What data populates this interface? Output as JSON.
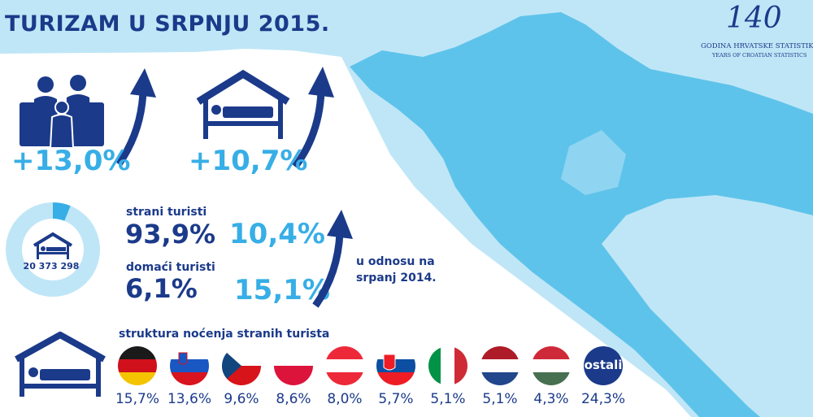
{
  "title": "TURIZAM U SRPNJU 2015.",
  "logo": {
    "number": "140",
    "line1": "GODINA HRVATSKE STATISTIKE",
    "line2": "YEARS OF CROATIAN STATISTICS"
  },
  "colors": {
    "navy": "#1b3a8a",
    "cyan": "#37aee6",
    "sea": "#bfe6f7",
    "land": "#5ec3ea"
  },
  "arrivals": {
    "icon": "family-luggage-icon",
    "change": "+13,0%"
  },
  "nights": {
    "icon": "bed-house-icon",
    "change": "+10,7%"
  },
  "overnights": {
    "total": "20 373 298",
    "foreign_label": "strani turisti",
    "foreign_share": "93,9%",
    "foreign_change": "10,4%",
    "domestic_label": "domaći turisti",
    "domestic_share": "6,1%",
    "domestic_change": "15,1%",
    "comparison_line1": "u odnosu na",
    "comparison_line2": "srpanj 2014."
  },
  "structure_label": "struktura noćenja stranih turista",
  "ostali_label": "ostali",
  "chart_data": [
    {
      "type": "pie",
      "labels": [
        "strani turisti",
        "domaći turisti"
      ],
      "values": [
        93.9,
        6.1
      ]
    },
    {
      "type": "bar",
      "categories": [
        "Germany",
        "Slovenia",
        "Czech Republic",
        "Poland",
        "Austria",
        "Slovakia",
        "Italy",
        "Netherlands",
        "Hungary",
        "ostali"
      ],
      "values": [
        15.7,
        13.6,
        9.6,
        8.6,
        8.0,
        5.7,
        5.1,
        5.1,
        4.3,
        24.3
      ],
      "value_labels": [
        "15,7%",
        "13,6%",
        "9,6%",
        "8,6%",
        "8,0%",
        "5,7%",
        "5,1%",
        "5,1%",
        "4,3%",
        "24,3%"
      ]
    }
  ]
}
